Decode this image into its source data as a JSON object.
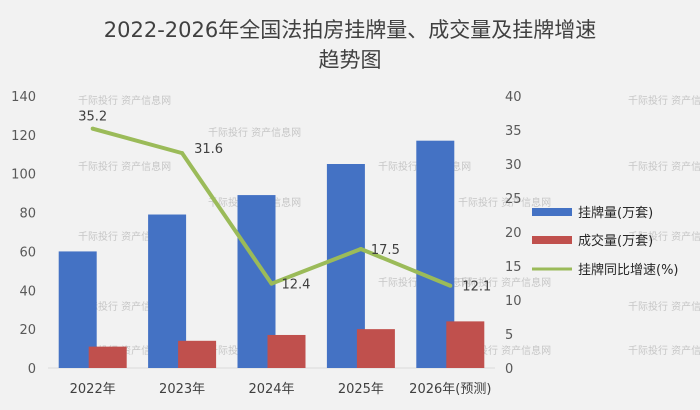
{
  "chart_data": {
    "type": "bar",
    "title_lines": [
      "2022-2026年全国法拍房挂牌量、成交量及挂牌增速",
      "趋势图"
    ],
    "categories": [
      "2022年",
      "2023年",
      "2024年",
      "2025年",
      "2026年(预测)"
    ],
    "series": [
      {
        "name": "挂牌量(万套)",
        "type": "bar",
        "axis": "left",
        "color": "#4472c4",
        "values": [
          60,
          79,
          89,
          105,
          117
        ]
      },
      {
        "name": "成交量(万套)",
        "type": "bar",
        "axis": "left",
        "color": "#c0504d",
        "values": [
          11,
          14,
          17,
          20,
          24
        ]
      },
      {
        "name": "挂牌同比增速(%)",
        "type": "line",
        "axis": "right",
        "color": "#9bbb59",
        "values": [
          35.2,
          31.6,
          12.4,
          17.5,
          12.1
        ],
        "labels": [
          "35.2",
          "31.6",
          "12.4",
          "17.5",
          "12.1"
        ]
      }
    ],
    "y_left": {
      "min": 0,
      "max": 140,
      "step": 20,
      "ticks": [
        "0",
        "20",
        "40",
        "60",
        "80",
        "100",
        "120",
        "140"
      ]
    },
    "y_right": {
      "min": 0,
      "max": 40,
      "step": 5,
      "ticks": [
        "0",
        "5",
        "10",
        "15",
        "20",
        "25",
        "30",
        "35",
        "40"
      ]
    },
    "grid": false,
    "legend_position": "right"
  },
  "watermark": "千际投行 资产信息网"
}
